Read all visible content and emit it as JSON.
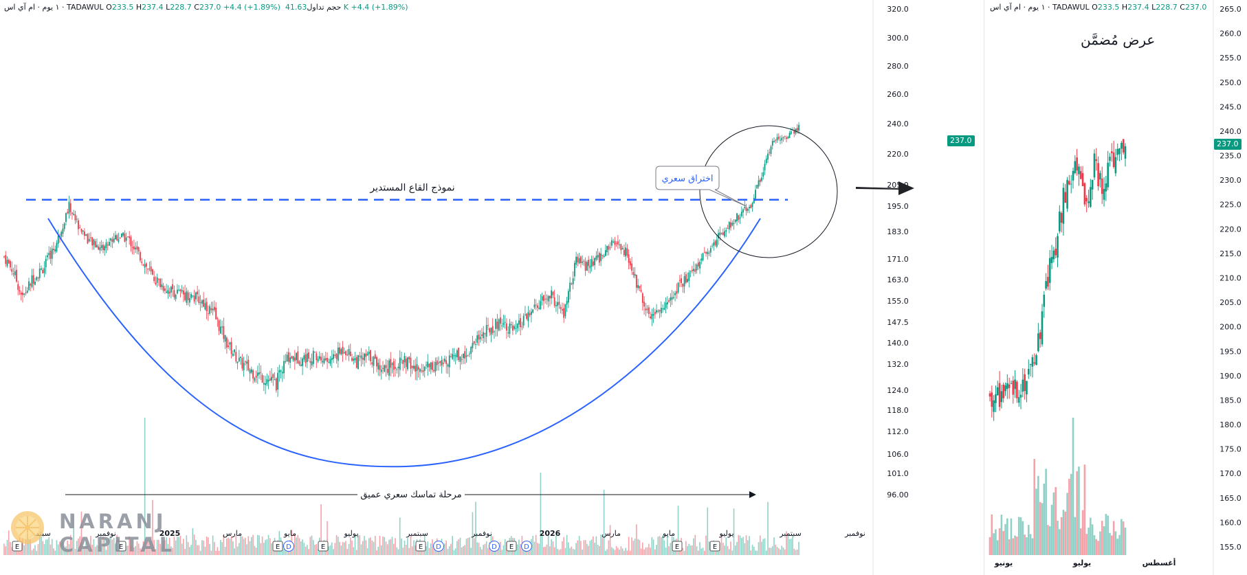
{
  "header": {
    "interval": "١ يوم",
    "company": "ام آي اس",
    "exchange": "TADAWUL",
    "open_label": "O",
    "open": "233.5",
    "high_label": "H",
    "high": "237.4",
    "low_label": "L",
    "low": "228.7",
    "close_label": "C",
    "close": "237.0",
    "change": "+4.4 (+1.89%)",
    "volume_label": "حجم تداول",
    "volume": "41.63 K"
  },
  "annotations": {
    "pattern_label": "نموذج القاع المستدير",
    "breakout_label": "اختراق سعري",
    "consolidation_label": "مرحلة تماسك سعري عميق",
    "zoom_title": "عرض مُضمَّن"
  },
  "brand": {
    "line1": "NARANJ",
    "line2": "CAPITAL"
  },
  "colors": {
    "up": "#089981",
    "down": "#f23645",
    "curve": "#2962ff",
    "up_vol": "#8fd1c7",
    "down_vol": "#f7a1a8"
  },
  "chart_data": [
    {
      "type": "candlestick",
      "name": "main",
      "yaxis_ticks": [
        "320.0",
        "300.0",
        "280.0",
        "260.0",
        "240.0",
        "220.0",
        "205.0",
        "195.0",
        "183.0",
        "171.0",
        "163.0",
        "155.0",
        "147.5",
        "140.0",
        "132.0",
        "124.0",
        "118.0",
        "112.0",
        "106.0",
        "101.0",
        "96.00"
      ],
      "xaxis_ticks": [
        "سبتمبر",
        "نوفمبر",
        "2025",
        "مارس",
        "مايو",
        "يوليو",
        "سبتمبر",
        "نوفمبر",
        "2026",
        "مارس",
        "مايو",
        "يوليو",
        "سبتمبر",
        "نوفمبر"
      ],
      "last_price": "237.0",
      "resistance_level": 198,
      "ylim": [
        96,
        320
      ],
      "price_anchors": [
        {
          "i": 0,
          "v": 172
        },
        {
          "i": 6,
          "v": 166
        },
        {
          "i": 12,
          "v": 156
        },
        {
          "i": 18,
          "v": 163
        },
        {
          "i": 26,
          "v": 168
        },
        {
          "i": 34,
          "v": 178
        },
        {
          "i": 42,
          "v": 195
        },
        {
          "i": 48,
          "v": 186
        },
        {
          "i": 56,
          "v": 178
        },
        {
          "i": 64,
          "v": 176
        },
        {
          "i": 72,
          "v": 181
        },
        {
          "i": 80,
          "v": 180
        },
        {
          "i": 88,
          "v": 172
        },
        {
          "i": 96,
          "v": 164
        },
        {
          "i": 104,
          "v": 160
        },
        {
          "i": 112,
          "v": 158
        },
        {
          "i": 120,
          "v": 157
        },
        {
          "i": 128,
          "v": 155
        },
        {
          "i": 136,
          "v": 150
        },
        {
          "i": 144,
          "v": 140
        },
        {
          "i": 152,
          "v": 133
        },
        {
          "i": 160,
          "v": 130
        },
        {
          "i": 168,
          "v": 128
        },
        {
          "i": 176,
          "v": 126
        },
        {
          "i": 184,
          "v": 135
        },
        {
          "i": 192,
          "v": 134
        },
        {
          "i": 200,
          "v": 135
        },
        {
          "i": 210,
          "v": 133
        },
        {
          "i": 220,
          "v": 138
        },
        {
          "i": 228,
          "v": 133
        },
        {
          "i": 236,
          "v": 135
        },
        {
          "i": 244,
          "v": 131
        },
        {
          "i": 252,
          "v": 132
        },
        {
          "i": 260,
          "v": 133
        },
        {
          "i": 266,
          "v": 130
        },
        {
          "i": 274,
          "v": 132
        },
        {
          "i": 282,
          "v": 131
        },
        {
          "i": 290,
          "v": 136
        },
        {
          "i": 298,
          "v": 135
        },
        {
          "i": 306,
          "v": 142
        },
        {
          "i": 314,
          "v": 145
        },
        {
          "i": 322,
          "v": 148
        },
        {
          "i": 330,
          "v": 144
        },
        {
          "i": 338,
          "v": 149
        },
        {
          "i": 346,
          "v": 154
        },
        {
          "i": 354,
          "v": 157
        },
        {
          "i": 362,
          "v": 150
        },
        {
          "i": 370,
          "v": 170
        },
        {
          "i": 378,
          "v": 168
        },
        {
          "i": 386,
          "v": 172
        },
        {
          "i": 394,
          "v": 178
        },
        {
          "i": 402,
          "v": 174
        },
        {
          "i": 410,
          "v": 160
        },
        {
          "i": 418,
          "v": 150
        },
        {
          "i": 426,
          "v": 152
        },
        {
          "i": 434,
          "v": 159
        },
        {
          "i": 442,
          "v": 164
        },
        {
          "i": 450,
          "v": 170
        },
        {
          "i": 458,
          "v": 177
        },
        {
          "i": 466,
          "v": 184
        },
        {
          "i": 474,
          "v": 190
        },
        {
          "i": 482,
          "v": 194
        },
        {
          "i": 490,
          "v": 210
        },
        {
          "i": 498,
          "v": 230
        },
        {
          "i": 506,
          "v": 232
        },
        {
          "i": 514,
          "v": 237
        }
      ]
    },
    {
      "type": "candlestick",
      "name": "zoom",
      "yaxis_ticks": [
        "265.0",
        "260.0",
        "255.0",
        "250.0",
        "245.0",
        "240.0",
        "235.0",
        "230.0",
        "225.0",
        "220.0",
        "215.0",
        "210.0",
        "205.0",
        "200.0",
        "195.0",
        "190.0",
        "185.0",
        "180.0",
        "175.0",
        "170.0",
        "165.0",
        "160.0",
        "155.0"
      ],
      "xaxis_ticks": [
        "يونيو",
        "يوليو",
        "أغسطس"
      ],
      "last_price": "237.0",
      "ylim": [
        155,
        265
      ],
      "price_anchors": [
        {
          "i": 0,
          "v": 186
        },
        {
          "i": 6,
          "v": 186
        },
        {
          "i": 12,
          "v": 187
        },
        {
          "i": 18,
          "v": 189
        },
        {
          "i": 22,
          "v": 193
        },
        {
          "i": 26,
          "v": 200
        },
        {
          "i": 30,
          "v": 210
        },
        {
          "i": 34,
          "v": 217
        },
        {
          "i": 38,
          "v": 226
        },
        {
          "i": 42,
          "v": 230
        },
        {
          "i": 46,
          "v": 233
        },
        {
          "i": 50,
          "v": 225
        },
        {
          "i": 54,
          "v": 233
        },
        {
          "i": 58,
          "v": 228
        },
        {
          "i": 62,
          "v": 234
        },
        {
          "i": 66,
          "v": 235
        },
        {
          "i": 70,
          "v": 237
        }
      ]
    }
  ]
}
